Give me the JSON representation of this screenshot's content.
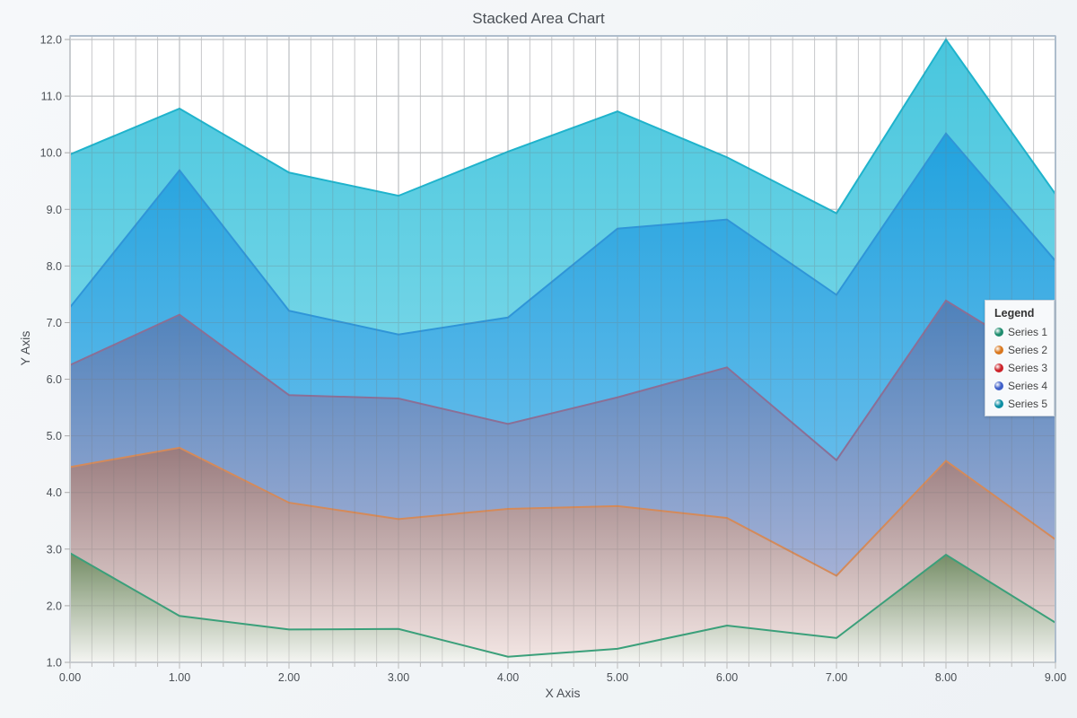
{
  "chart_data": {
    "type": "area",
    "stacked": true,
    "title": "Stacked Area Chart",
    "xlabel": "X Axis",
    "ylabel": "Y Axis",
    "xlim": [
      0,
      9
    ],
    "ylim": [
      1,
      12
    ],
    "x": [
      0,
      1,
      2,
      3,
      4,
      5,
      6,
      7,
      8,
      9
    ],
    "x_tick_labels": [
      "0.00",
      "1.00",
      "2.00",
      "3.00",
      "4.00",
      "5.00",
      "6.00",
      "7.00",
      "8.00",
      "9.00"
    ],
    "y_ticks": [
      1,
      2,
      3,
      4,
      5,
      6,
      7,
      8,
      9,
      10,
      11,
      12
    ],
    "y_tick_labels": [
      "1.0",
      "2.0",
      "3.0",
      "4.0",
      "5.0",
      "6.0",
      "7.0",
      "8.0",
      "9.0",
      "10.0",
      "11.0",
      "12.0"
    ],
    "grid": true,
    "legend_position": "right",
    "series": [
      {
        "name": "Series 1",
        "color": "#1e8c6e",
        "values": [
          2.93,
          1.82,
          1.58,
          1.59,
          1.1,
          1.24,
          1.65,
          1.43,
          2.9,
          1.7
        ]
      },
      {
        "name": "Series 2",
        "color": "#d9771e",
        "values": [
          1.52,
          2.97,
          2.24,
          1.94,
          2.61,
          2.52,
          1.9,
          1.1,
          1.66,
          1.47
        ]
      },
      {
        "name": "Series 3",
        "color": "#cc2229",
        "values": [
          1.8,
          2.35,
          1.9,
          2.13,
          1.5,
          1.92,
          2.66,
          2.04,
          2.83,
          3.03
        ]
      },
      {
        "name": "Series 4",
        "color": "#3f5fc9",
        "values": [
          1.02,
          2.55,
          1.49,
          1.13,
          1.88,
          2.98,
          2.61,
          2.92,
          2.95,
          1.89
        ]
      },
      {
        "name": "Series 5",
        "color": "#0d8ea3",
        "values": [
          2.7,
          1.09,
          2.44,
          2.45,
          2.93,
          2.07,
          1.1,
          1.44,
          1.66,
          1.18
        ]
      }
    ]
  },
  "legend": {
    "title": "Legend",
    "items": [
      {
        "label": "Series 1",
        "color": "#1e8c6e"
      },
      {
        "label": "Series 2",
        "color": "#d9771e"
      },
      {
        "label": "Series 3",
        "color": "#cc2229"
      },
      {
        "label": "Series 4",
        "color": "#3f5fc9"
      },
      {
        "label": "Series 5",
        "color": "#0d8ea3"
      }
    ]
  }
}
